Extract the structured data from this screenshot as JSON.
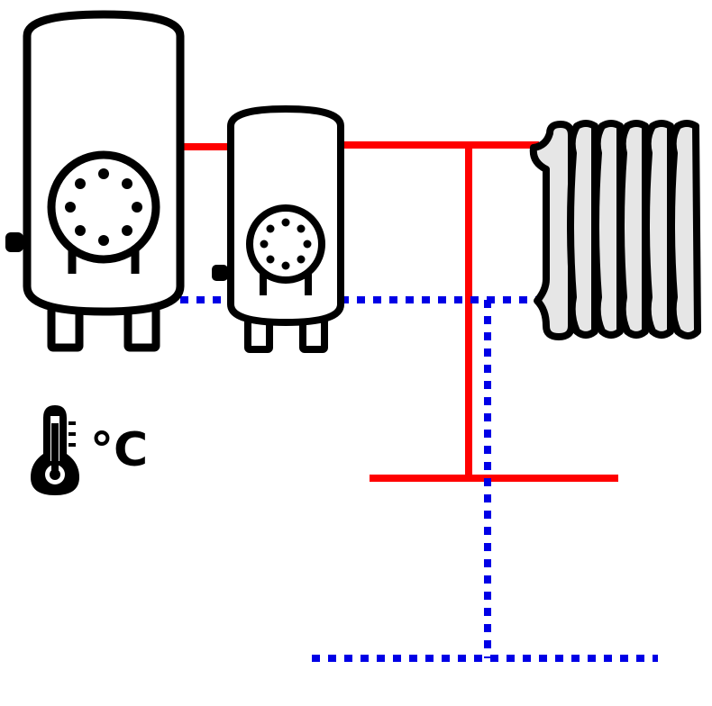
{
  "temperature": {
    "unit_label": "°C",
    "icon": "thermometer-icon"
  },
  "colors": {
    "supply_line": "#ff0000",
    "return_line": "#0000e6",
    "outline": "#000000",
    "radiator_fill": "#e6e6e6",
    "background": "#ffffff"
  },
  "components": {
    "large_tank": "boiler-tank-icon",
    "small_tank": "buffer-tank-icon",
    "radiator": "radiator-icon"
  }
}
